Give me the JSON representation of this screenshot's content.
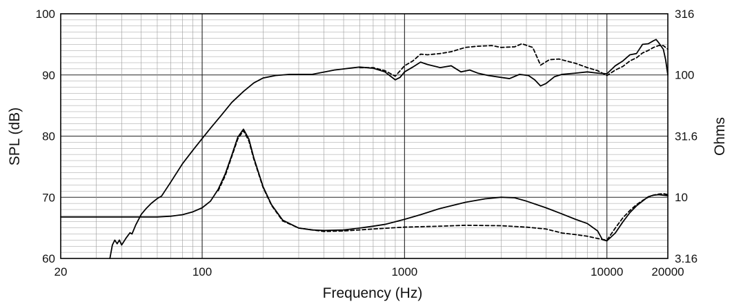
{
  "chart_data": {
    "type": "line",
    "title": "",
    "xlabel": "Frequency (Hz)",
    "ylabel": "SPL (dB)",
    "y2label": "Ohms",
    "xscale": "log",
    "y2scale": "log",
    "xlim": [
      20,
      20000
    ],
    "ylim": [
      60,
      100
    ],
    "y2lim": [
      3.16,
      316
    ],
    "grid": true,
    "x_ticks": [
      {
        "value": 20,
        "label": "20"
      },
      {
        "value": 100,
        "label": "100"
      },
      {
        "value": 1000,
        "label": "1000"
      },
      {
        "value": 10000,
        "label": "10000"
      },
      {
        "value": 20000,
        "label": "20000"
      }
    ],
    "y_ticks": [
      {
        "value": 60,
        "label": "60"
      },
      {
        "value": 70,
        "label": "70"
      },
      {
        "value": 80,
        "label": "80"
      },
      {
        "value": 90,
        "label": "90"
      },
      {
        "value": 100,
        "label": "100"
      }
    ],
    "y2_ticks": [
      {
        "value": 3.16,
        "label": "3.16"
      },
      {
        "value": 10,
        "label": "10"
      },
      {
        "value": 31.6,
        "label": "31.6"
      },
      {
        "value": 100,
        "label": "100"
      },
      {
        "value": 316,
        "label": "316"
      }
    ],
    "series": [
      {
        "axis": "left",
        "style": "solid",
        "color": "#000000",
        "points": [
          [
            35,
            60
          ],
          [
            36,
            62.2
          ],
          [
            37,
            63
          ],
          [
            38,
            62.4
          ],
          [
            39,
            63
          ],
          [
            40,
            62.2
          ],
          [
            42,
            63.3
          ],
          [
            44,
            64.2
          ],
          [
            45,
            64
          ],
          [
            47,
            65.5
          ],
          [
            50,
            67.2
          ],
          [
            53,
            68.2
          ],
          [
            56,
            69
          ],
          [
            60,
            69.8
          ],
          [
            63,
            70.2
          ],
          [
            70,
            72.5
          ],
          [
            80,
            75.5
          ],
          [
            90,
            77.7
          ],
          [
            100,
            79.6
          ],
          [
            110,
            81.3
          ],
          [
            125,
            83.5
          ],
          [
            140,
            85.5
          ],
          [
            160,
            87.3
          ],
          [
            180,
            88.7
          ],
          [
            200,
            89.5
          ],
          [
            230,
            89.9
          ],
          [
            270,
            90.1
          ],
          [
            350,
            90.1
          ],
          [
            450,
            90.8
          ],
          [
            600,
            91.3
          ],
          [
            700,
            91.1
          ],
          [
            800,
            90.5
          ],
          [
            900,
            89.2
          ],
          [
            950,
            89.6
          ],
          [
            1000,
            90.5
          ],
          [
            1100,
            91.3
          ],
          [
            1200,
            92.1
          ],
          [
            1300,
            91.7
          ],
          [
            1500,
            91.2
          ],
          [
            1700,
            91.5
          ],
          [
            1900,
            90.5
          ],
          [
            2100,
            90.8
          ],
          [
            2300,
            90.3
          ],
          [
            2600,
            89.9
          ],
          [
            3000,
            89.6
          ],
          [
            3300,
            89.4
          ],
          [
            3700,
            90.1
          ],
          [
            4100,
            89.9
          ],
          [
            4400,
            89.2
          ],
          [
            4700,
            88.2
          ],
          [
            5000,
            88.6
          ],
          [
            5500,
            89.7
          ],
          [
            6000,
            90.1
          ],
          [
            7000,
            90.3
          ],
          [
            8000,
            90.5
          ],
          [
            9000,
            90.3
          ],
          [
            10000,
            90.2
          ],
          [
            11000,
            91.5
          ],
          [
            12000,
            92.3
          ],
          [
            13000,
            93.3
          ],
          [
            14000,
            93.5
          ],
          [
            15000,
            95
          ],
          [
            16000,
            95.1
          ],
          [
            17000,
            95.6
          ],
          [
            17500,
            95.8
          ],
          [
            18000,
            95.3
          ],
          [
            19000,
            94.2
          ],
          [
            19500,
            92.5
          ],
          [
            20000,
            90
          ]
        ]
      },
      {
        "axis": "left",
        "style": "dashed",
        "color": "#000000",
        "points": [
          [
            600,
            91.2
          ],
          [
            700,
            91.2
          ],
          [
            800,
            90.7
          ],
          [
            900,
            89.8
          ],
          [
            1000,
            91.5
          ],
          [
            1100,
            92.3
          ],
          [
            1200,
            93.4
          ],
          [
            1300,
            93.3
          ],
          [
            1500,
            93.5
          ],
          [
            1700,
            93.8
          ],
          [
            2000,
            94.5
          ],
          [
            2300,
            94.7
          ],
          [
            2700,
            94.8
          ],
          [
            3000,
            94.5
          ],
          [
            3500,
            94.6
          ],
          [
            3800,
            95.1
          ],
          [
            4300,
            94.5
          ],
          [
            4700,
            91.6
          ],
          [
            5200,
            92.5
          ],
          [
            5800,
            92.6
          ],
          [
            7000,
            91.9
          ],
          [
            8000,
            91.2
          ],
          [
            9000,
            90.7
          ],
          [
            10000,
            89.9
          ],
          [
            11000,
            90.8
          ],
          [
            12000,
            91.4
          ],
          [
            13000,
            92.3
          ],
          [
            14000,
            92.8
          ],
          [
            15000,
            93.6
          ],
          [
            16000,
            94
          ],
          [
            17000,
            94.5
          ],
          [
            18000,
            94.8
          ],
          [
            19000,
            94.8
          ],
          [
            20000,
            94.2
          ]
        ]
      },
      {
        "axis": "right",
        "style": "solid",
        "color": "#000000",
        "points": [
          [
            20,
            6.9
          ],
          [
            40,
            6.9
          ],
          [
            60,
            6.9
          ],
          [
            70,
            7
          ],
          [
            80,
            7.2
          ],
          [
            90,
            7.6
          ],
          [
            100,
            8.2
          ],
          [
            110,
            9.3
          ],
          [
            120,
            11.6
          ],
          [
            130,
            15.5
          ],
          [
            140,
            22
          ],
          [
            150,
            31
          ],
          [
            160,
            36
          ],
          [
            170,
            30
          ],
          [
            180,
            21
          ],
          [
            200,
            12.2
          ],
          [
            220,
            8.7
          ],
          [
            250,
            6.5
          ],
          [
            300,
            5.6
          ],
          [
            350,
            5.4
          ],
          [
            400,
            5.35
          ],
          [
            500,
            5.4
          ],
          [
            600,
            5.6
          ],
          [
            700,
            5.8
          ],
          [
            800,
            6
          ],
          [
            900,
            6.3
          ],
          [
            1000,
            6.6
          ],
          [
            1200,
            7.2
          ],
          [
            1500,
            8.1
          ],
          [
            2000,
            9.1
          ],
          [
            2500,
            9.7
          ],
          [
            3000,
            10
          ],
          [
            3500,
            9.9
          ],
          [
            4000,
            9.3
          ],
          [
            5000,
            8.2
          ],
          [
            6000,
            7.3
          ],
          [
            7000,
            6.6
          ],
          [
            8000,
            6.1
          ],
          [
            9000,
            5.3
          ],
          [
            9500,
            4.5
          ],
          [
            10000,
            4.4
          ],
          [
            11000,
            5.1
          ],
          [
            12000,
            6.3
          ],
          [
            13000,
            7.5
          ],
          [
            14000,
            8.5
          ],
          [
            15000,
            9.3
          ],
          [
            16000,
            10.1
          ],
          [
            17000,
            10.4
          ],
          [
            18000,
            10.5
          ],
          [
            19000,
            10.4
          ],
          [
            20000,
            10.3
          ]
        ]
      },
      {
        "axis": "right",
        "style": "dashed",
        "color": "#000000",
        "points": [
          [
            120,
            11.3
          ],
          [
            130,
            15
          ],
          [
            140,
            21.5
          ],
          [
            150,
            30
          ],
          [
            160,
            35
          ],
          [
            170,
            29
          ],
          [
            180,
            20.5
          ],
          [
            200,
            12
          ],
          [
            220,
            8.6
          ],
          [
            250,
            6.4
          ],
          [
            300,
            5.6
          ],
          [
            400,
            5.25
          ],
          [
            500,
            5.3
          ],
          [
            700,
            5.5
          ],
          [
            1000,
            5.7
          ],
          [
            1500,
            5.8
          ],
          [
            2000,
            5.9
          ],
          [
            3000,
            5.85
          ],
          [
            4000,
            5.7
          ],
          [
            5000,
            5.5
          ],
          [
            6000,
            5.1
          ],
          [
            7000,
            4.95
          ],
          [
            8000,
            4.8
          ],
          [
            9000,
            4.6
          ],
          [
            10000,
            4.45
          ],
          [
            11000,
            5.6
          ],
          [
            12000,
            6.8
          ],
          [
            13000,
            7.8
          ],
          [
            14000,
            8.7
          ],
          [
            15000,
            9.4
          ],
          [
            16000,
            10
          ],
          [
            17000,
            10.4
          ],
          [
            18000,
            10.6
          ],
          [
            19000,
            10.7
          ],
          [
            20000,
            10.5
          ]
        ]
      }
    ]
  }
}
